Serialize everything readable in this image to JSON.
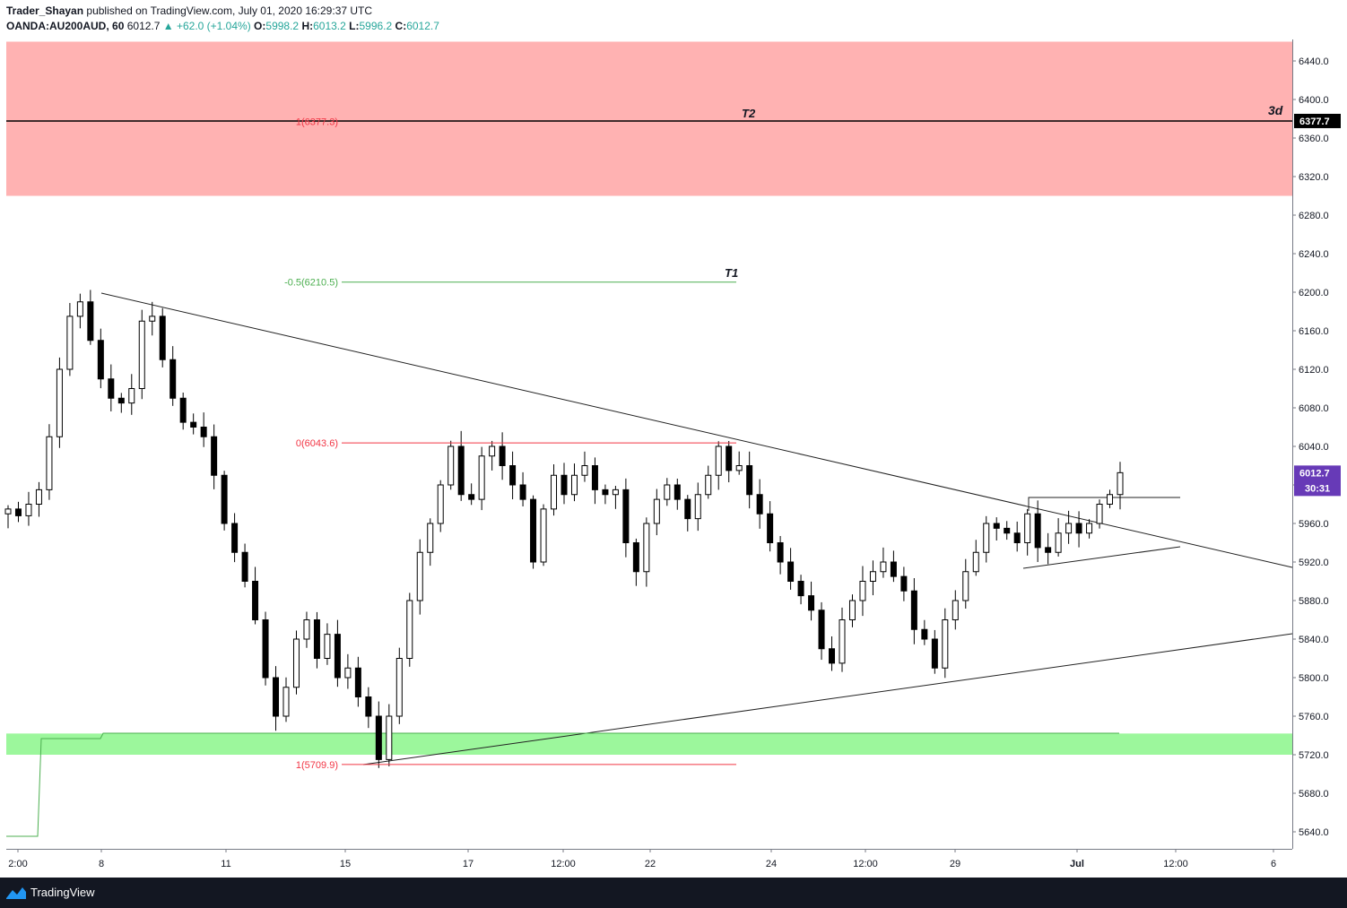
{
  "header": {
    "author": "Trader_Shayan",
    "published_text": "published on TradingView.com, July 01, 2020 16:29:37 UTC",
    "symbol": "OANDA:AU200AUD, 60",
    "last": "6012.7",
    "change": "▲ +62.0 (+1.04%)",
    "open_label": "O:",
    "open": "5998.2",
    "high_label": "H:",
    "high": "6013.2",
    "low_label": "L:",
    "low": "5996.2",
    "close_label": "C:",
    "close": "6012.7"
  },
  "footer": {
    "brand": "TradingView"
  },
  "chart_data": {
    "type": "candlestick",
    "symbol": "OANDA:AU200AUD",
    "interval": "60",
    "ylim": [
      5620,
      6460
    ],
    "y_ticks": [
      5640,
      5680,
      5720,
      5760,
      5800,
      5840,
      5880,
      5920,
      5960,
      6000,
      6040,
      6080,
      6120,
      6160,
      6200,
      6240,
      6280,
      6320,
      6360,
      6400,
      6440
    ],
    "x_tick_labels": [
      "2:00",
      "8",
      "11",
      "15",
      "17",
      "12:00",
      "22",
      "24",
      "12:00",
      "29",
      "Jul",
      "12:00",
      "6"
    ],
    "price_series": [
      5975,
      5968,
      5980,
      5995,
      6050,
      6120,
      6175,
      6190,
      6150,
      6110,
      6090,
      6085,
      6100,
      6170,
      6175,
      6130,
      6090,
      6065,
      6060,
      6050,
      6010,
      5960,
      5930,
      5900,
      5860,
      5800,
      5760,
      5790,
      5840,
      5860,
      5820,
      5845,
      5800,
      5810,
      5780,
      5760,
      5715,
      5760,
      5820,
      5880,
      5930,
      5960,
      6000,
      6040,
      5990,
      5985,
      6030,
      6040,
      6020,
      6000,
      5985,
      5920,
      5975,
      6010,
      5990,
      6010,
      6020,
      5995,
      5990,
      5995,
      5940,
      5910,
      5960,
      5985,
      6000,
      5985,
      5965,
      5990,
      6010,
      6040,
      6015,
      6020,
      5990,
      5970,
      5940,
      5920,
      5900,
      5885,
      5870,
      5830,
      5815,
      5860,
      5880,
      5900,
      5910,
      5920,
      5905,
      5890,
      5850,
      5840,
      5810,
      5860,
      5880,
      5910,
      5930,
      5960,
      5955,
      5950,
      5940,
      5970,
      5935,
      5930,
      5950,
      5960,
      5950,
      5960,
      5980,
      5990,
      6012.7
    ],
    "last_price": "6012.7",
    "last_price_color": "#673ab7",
    "countdown": "30:31",
    "target_price": "6377.7",
    "resistance_zone": [
      6300,
      6460
    ],
    "resistance_color": "#ffb2b2",
    "support_zone": [
      5720,
      5742
    ],
    "support_color": "#9cf79c",
    "fib_levels": [
      {
        "label": "-0.5(6210.5)",
        "value": 6210.5,
        "color": "#4caf50"
      },
      {
        "label": "0(6043.6)",
        "value": 6043.6,
        "color": "#f23645"
      },
      {
        "label": "1(5709.9)",
        "value": 5709.9,
        "color": "#f23645"
      },
      {
        "label": "1(6377.3)",
        "value": 6377.3,
        "color": "#f23645"
      }
    ],
    "annotations": [
      "T2",
      "T1",
      "3d"
    ]
  }
}
